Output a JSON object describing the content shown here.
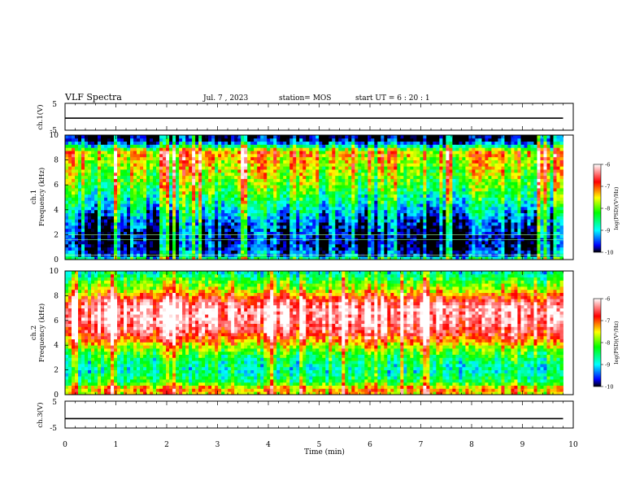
{
  "header": {
    "title": "VLF Spectra",
    "date": "Jul. 7 , 2023",
    "station": "station= MOS",
    "start": "start UT = 6 : 20 : 1"
  },
  "chart_data": [
    {
      "type": "line",
      "name_label": "ch.1(V)",
      "ylabel": "ch.1(V)",
      "ylim": [
        -5,
        5
      ],
      "yticks": [
        "5",
        "-5"
      ],
      "xlim": [
        0,
        10
      ],
      "series": [
        {
          "x": [
            0,
            9.8
          ],
          "y": [
            -0.5,
            -0.5
          ]
        }
      ]
    },
    {
      "type": "heatmap",
      "ylabel_top": "ch.1",
      "ylabel": "Frequency (kHz)",
      "ylim": [
        0,
        10
      ],
      "yticks": [
        "0",
        "2",
        "4",
        "6",
        "8",
        "10"
      ],
      "xlim": [
        0,
        10
      ],
      "data_xlim": [
        0,
        9.8
      ],
      "colorbar": {
        "label": "log(PSD)(V²/Hz)",
        "range": [
          -10,
          -6
        ],
        "ticks": [
          "-6",
          "-7",
          "-8",
          "-9",
          "-10"
        ]
      },
      "spectral_profile_log_psd": {
        "freq_khz": [
          0,
          0.3,
          0.6,
          1,
          1.5,
          2,
          3,
          4,
          5,
          6,
          7,
          8,
          8.6,
          9,
          9.3,
          9.6,
          10
        ],
        "log_psd": [
          -8.2,
          -9.4,
          -9.6,
          -9.8,
          -9.9,
          -9.8,
          -9.5,
          -9.0,
          -8.5,
          -8.1,
          -7.8,
          -7.5,
          -7.3,
          -8.2,
          -9.3,
          -9.9,
          -10
        ]
      }
    },
    {
      "type": "heatmap",
      "ylabel_top": "ch.2",
      "ylabel": "Frequency (kHz)",
      "ylim": [
        0,
        10
      ],
      "yticks": [
        "0",
        "2",
        "4",
        "6",
        "8",
        "10"
      ],
      "xlim": [
        0,
        10
      ],
      "data_xlim": [
        0,
        9.8
      ],
      "colorbar": {
        "label": "log(PSD)(V²/Hz)",
        "range": [
          -10,
          -6
        ],
        "ticks": [
          "-6",
          "-7",
          "-8",
          "-9",
          "-10"
        ]
      },
      "spectral_profile_log_psd": {
        "freq_khz": [
          0,
          0.5,
          1,
          2,
          3,
          4,
          4.5,
          5,
          6,
          7,
          7.5,
          8,
          8.5,
          9,
          9.5,
          10
        ],
        "log_psd": [
          -7.5,
          -7.2,
          -8.3,
          -8.8,
          -8.4,
          -7.6,
          -7.0,
          -6.6,
          -6.2,
          -6.2,
          -6.5,
          -7.0,
          -7.7,
          -8.0,
          -8.4,
          -8.8
        ]
      }
    },
    {
      "type": "line",
      "ylabel": "ch.3(V)",
      "ylim": [
        -5,
        5
      ],
      "yticks": [
        "5",
        "-5"
      ],
      "xlim": [
        0,
        10
      ],
      "xticks": [
        "0",
        "1",
        "2",
        "3",
        "4",
        "5",
        "6",
        "7",
        "8",
        "9",
        "10"
      ],
      "xlabel": "Time (min)",
      "series": [
        {
          "x": [
            0,
            9.8
          ],
          "y": [
            -1.5,
            -1.5
          ]
        }
      ]
    }
  ]
}
